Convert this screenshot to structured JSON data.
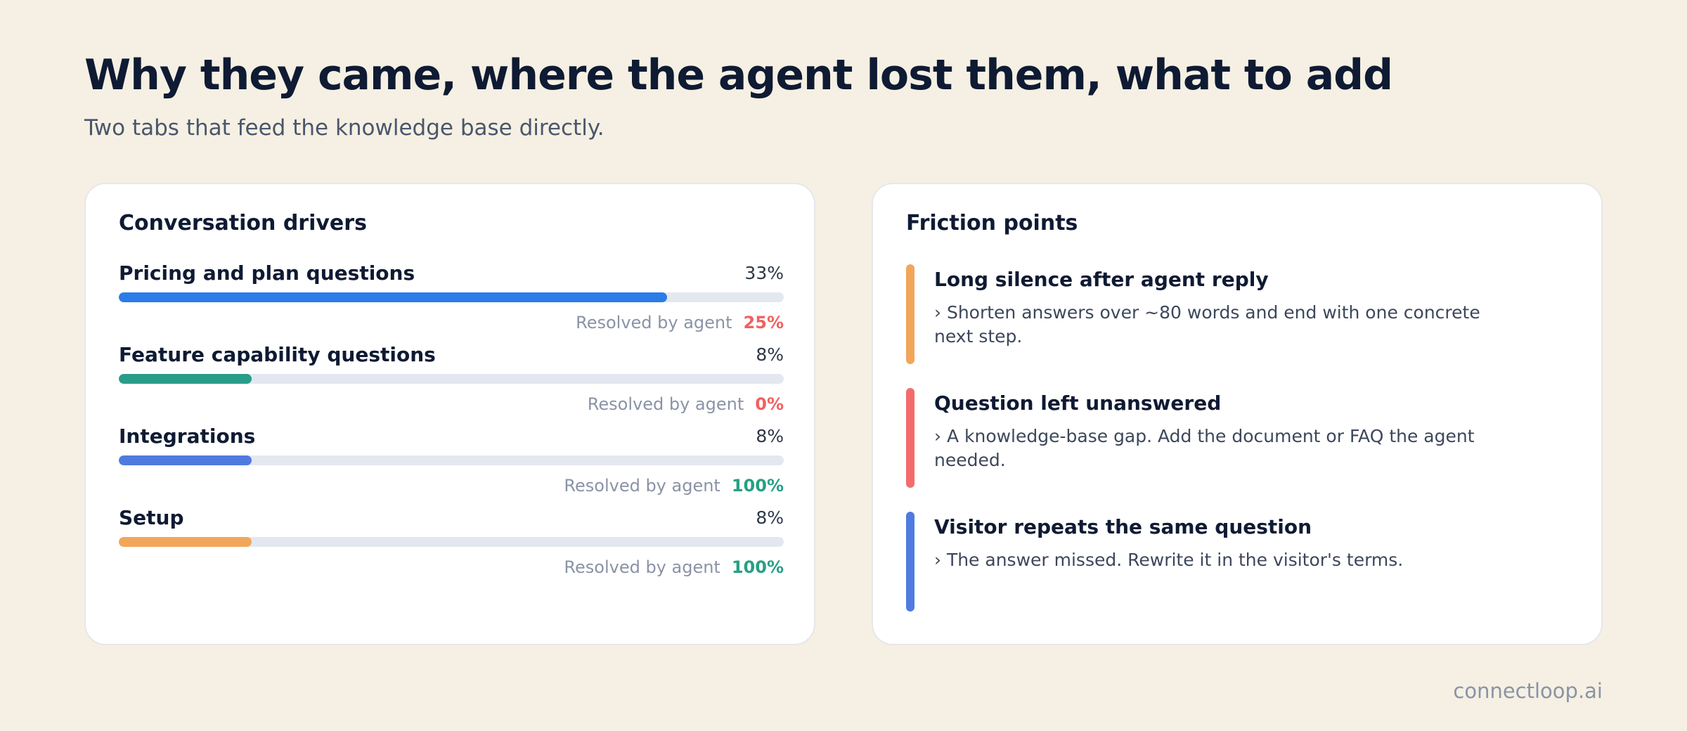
{
  "header": {
    "title": "Why they came, where the agent lost them, what to add",
    "subtitle": "Two tabs that feed the knowledge base directly."
  },
  "drivers": {
    "title": "Conversation drivers",
    "items": [
      {
        "label": "Pricing and plan questions",
        "share": 33,
        "share_text": "33%",
        "resolved_label": "Resolved by agent",
        "resolved_text": "25%",
        "bar_color": "#2b7be9",
        "resolved_color": "#f26060"
      },
      {
        "label": "Feature capability questions",
        "share": 8,
        "share_text": "8%",
        "resolved_label": "Resolved by agent",
        "resolved_text": "0%",
        "bar_color": "#2a9d8a",
        "resolved_color": "#f26060"
      },
      {
        "label": "Integrations",
        "share": 8,
        "share_text": "8%",
        "resolved_label": "Resolved by agent",
        "resolved_text": "100%",
        "bar_color": "#4f7be0",
        "resolved_color": "#26a085"
      },
      {
        "label": "Setup",
        "share": 8,
        "share_text": "8%",
        "resolved_label": "Resolved by agent",
        "resolved_text": "100%",
        "bar_color": "#f2a65a",
        "resolved_color": "#26a085"
      }
    ]
  },
  "friction": {
    "title": "Friction points",
    "items": [
      {
        "title": "Long silence after agent reply",
        "desc": "› Shorten answers over ~80 words and end with one concrete next step.",
        "color": "#f2a65a"
      },
      {
        "title": "Question left unanswered",
        "desc": "› A knowledge-base gap. Add the document or FAQ the agent needed.",
        "color": "#f46b6b"
      },
      {
        "title": "Visitor repeats the same question",
        "desc": "› The answer missed. Rewrite it in the visitor's terms.",
        "color": "#4f7be0"
      }
    ]
  },
  "footer": {
    "brand": "connectloop.ai"
  }
}
